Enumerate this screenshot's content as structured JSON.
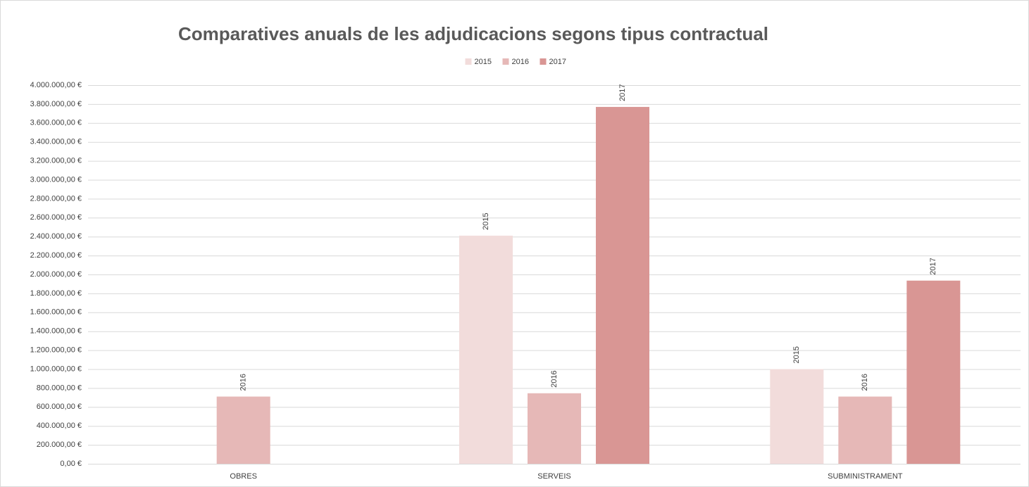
{
  "chart_data": {
    "type": "bar",
    "title": "Comparatives anuals de les adjudicacions segons tipus contractual",
    "categories": [
      "OBRES",
      "SERVEIS",
      "SUBMINISTRAMENT"
    ],
    "series": [
      {
        "name": "2015",
        "color": "#f2dcdb",
        "values": [
          null,
          2410000,
          1000000
        ]
      },
      {
        "name": "2016",
        "color": "#e6b8b7",
        "values": [
          710000,
          745000,
          710000
        ]
      },
      {
        "name": "2017",
        "color": "#d99694",
        "values": [
          null,
          3770000,
          1935000
        ]
      }
    ],
    "ylim": [
      0,
      4000000
    ],
    "yticks": [
      {
        "value": 0,
        "label": "0,00 €"
      },
      {
        "value": 200000,
        "label": "200.000,00 €"
      },
      {
        "value": 400000,
        "label": "400.000,00 €"
      },
      {
        "value": 600000,
        "label": "600.000,00 €"
      },
      {
        "value": 800000,
        "label": "800.000,00 €"
      },
      {
        "value": 1000000,
        "label": "1.000.000,00 €"
      },
      {
        "value": 1200000,
        "label": "1.200.000,00 €"
      },
      {
        "value": 1400000,
        "label": "1.400.000,00 €"
      },
      {
        "value": 1600000,
        "label": "1.600.000,00 €"
      },
      {
        "value": 1800000,
        "label": "1.800.000,00 €"
      },
      {
        "value": 2000000,
        "label": "2.000.000,00 €"
      },
      {
        "value": 2200000,
        "label": "2.200.000,00 €"
      },
      {
        "value": 2400000,
        "label": "2.400.000,00 €"
      },
      {
        "value": 2600000,
        "label": "2.600.000,00 €"
      },
      {
        "value": 2800000,
        "label": "2.800.000,00 €"
      },
      {
        "value": 3000000,
        "label": "3.000.000,00 €"
      },
      {
        "value": 3200000,
        "label": "3.200.000,00 €"
      },
      {
        "value": 3400000,
        "label": "3.400.000,00 €"
      },
      {
        "value": 3600000,
        "label": "3.600.000,00 €"
      },
      {
        "value": 3800000,
        "label": "3.800.000,00 €"
      },
      {
        "value": 4000000,
        "label": "4.000.000,00 €"
      }
    ],
    "grid": true,
    "legend": "top"
  }
}
